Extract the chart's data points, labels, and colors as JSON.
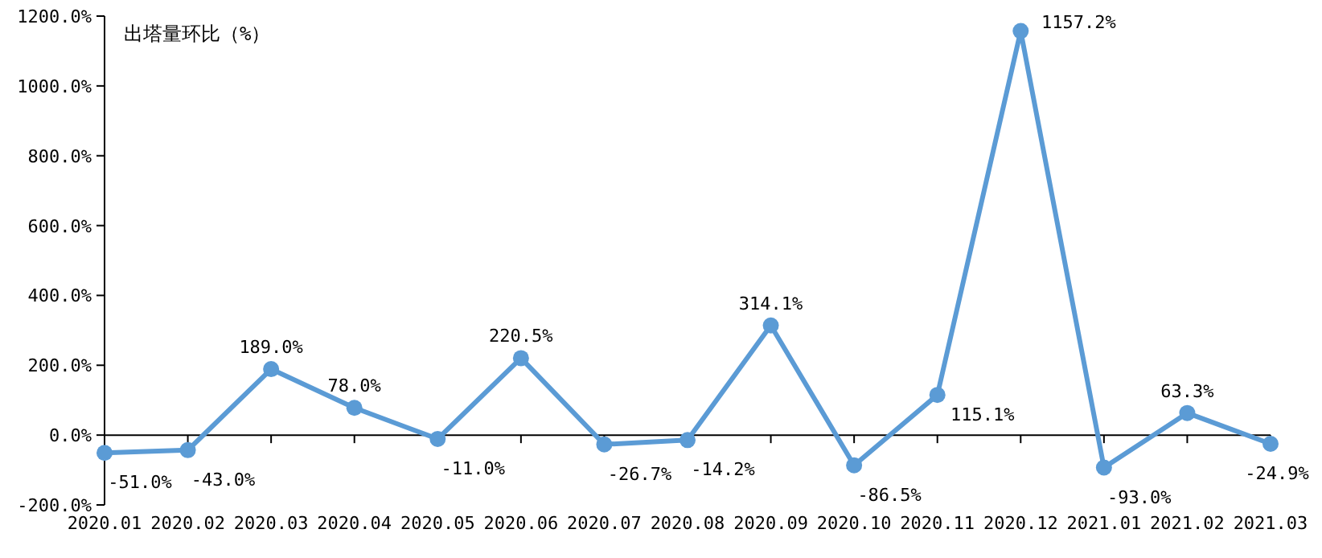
{
  "chart_data": {
    "type": "line",
    "title": "出塔量环比（%）",
    "categories": [
      "2020.01",
      "2020.02",
      "2020.03",
      "2020.04",
      "2020.05",
      "2020.06",
      "2020.07",
      "2020.08",
      "2020.09",
      "2020.10",
      "2020.11",
      "2020.12",
      "2021.01",
      "2021.02",
      "2021.03"
    ],
    "series": [
      {
        "color": "#5b9bd5",
        "values": [
          -51.0,
          -43.0,
          189.0,
          78.0,
          -11.0,
          220.5,
          -26.7,
          -14.2,
          314.1,
          -86.5,
          115.1,
          1157.2,
          -93.0,
          63.3,
          -24.9
        ],
        "value_labels": [
          "-51.0%",
          "-43.0%",
          "189.0%",
          "78.0%",
          "-11.0%",
          "220.5%",
          "-26.7%",
          "-14.2%",
          "314.1%",
          "-86.5%",
          "115.1%",
          "1157.2%",
          "-93.0%",
          "63.3%",
          "-24.9%"
        ]
      }
    ],
    "ylim": [
      -200,
      1200
    ],
    "yticks": [
      {
        "value": -200,
        "label": "-200.0%"
      },
      {
        "value": 0,
        "label": "0.0%"
      },
      {
        "value": 200,
        "label": "200.0%"
      },
      {
        "value": 400,
        "label": "400.0%"
      },
      {
        "value": 600,
        "label": "600.0%"
      },
      {
        "value": 800,
        "label": "800.0%"
      },
      {
        "value": 1000,
        "label": "1000.0%"
      },
      {
        "value": 1200,
        "label": "1200.0%"
      }
    ],
    "marker": "circle",
    "line_style": "solid"
  }
}
